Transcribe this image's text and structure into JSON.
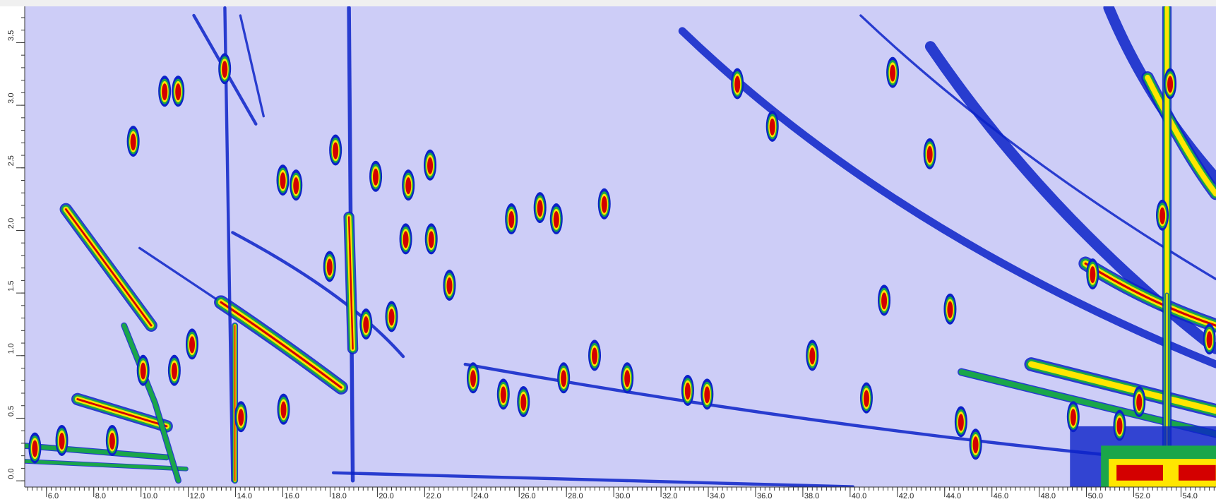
{
  "chart_data": {
    "type": "contour",
    "xlim": [
      5.08,
      55.48
    ],
    "ylim": [
      -0.05,
      3.79
    ],
    "xticks": [
      {
        "value": 6,
        "label": "6.0"
      },
      {
        "value": 8,
        "label": "8.0"
      },
      {
        "value": 10,
        "label": "10.0"
      },
      {
        "value": 12,
        "label": "12.0"
      },
      {
        "value": 14,
        "label": "14.0"
      },
      {
        "value": 16,
        "label": "16.0"
      },
      {
        "value": 18,
        "label": "18.0"
      },
      {
        "value": 20,
        "label": "20.0"
      },
      {
        "value": 22,
        "label": "22.0"
      },
      {
        "value": 24,
        "label": "24.0"
      },
      {
        "value": 26,
        "label": "26.0"
      },
      {
        "value": 28,
        "label": "28.0"
      },
      {
        "value": 30,
        "label": "30.0"
      },
      {
        "value": 32,
        "label": "32.0"
      },
      {
        "value": 34,
        "label": "34.0"
      },
      {
        "value": 36,
        "label": "36.0"
      },
      {
        "value": 38,
        "label": "38.0"
      },
      {
        "value": 40,
        "label": "40.0"
      },
      {
        "value": 42,
        "label": "42.0"
      },
      {
        "value": 44,
        "label": "44.0"
      },
      {
        "value": 46,
        "label": "46.0"
      },
      {
        "value": 48,
        "label": "48.0"
      },
      {
        "value": 50,
        "label": "50.0"
      },
      {
        "value": 52,
        "label": "52.0"
      },
      {
        "value": 54,
        "label": "54.0"
      }
    ],
    "yticks": [
      {
        "value": 0,
        "label": "0.0"
      },
      {
        "value": 0.5,
        "label": "0.5"
      },
      {
        "value": 1,
        "label": "1.0"
      },
      {
        "value": 1.5,
        "label": "1.5"
      },
      {
        "value": 2,
        "label": "2.0"
      },
      {
        "value": 2.5,
        "label": "2.5"
      },
      {
        "value": 3,
        "label": "3.0"
      },
      {
        "value": 3.5,
        "label": "3.5"
      }
    ],
    "background": "#cdcdf7",
    "colors": [
      "#0b22c8",
      "#1aa64a",
      "#ffe600",
      "#d40000"
    ],
    "x": [
      9.67,
      11.0,
      11.57,
      13.54,
      16.0,
      16.56,
      18.23,
      19.93,
      21.31,
      22.23,
      25.67,
      26.88,
      27.57,
      29.6,
      21.2,
      22.28,
      24.05,
      25.33,
      26.18,
      27.88,
      29.19,
      30.57,
      33.13,
      33.95,
      40.69,
      41.44,
      44.23,
      41.8,
      35.23,
      36.71,
      43.37,
      14.23,
      16.03,
      12.16,
      17.98,
      19.52,
      20.6,
      23.05,
      50.26,
      53.21,
      55.2,
      49.44,
      52.23,
      5.51,
      6.65,
      8.78,
      10.09,
      11.41,
      44.69,
      45.31,
      53.54,
      51.4,
      38.4
    ],
    "y": [
      2.7,
      3.1,
      3.1,
      3.28,
      2.39,
      2.35,
      2.63,
      2.42,
      2.35,
      2.51,
      2.08,
      2.17,
      2.08,
      2.2,
      1.92,
      1.92,
      0.81,
      0.68,
      0.62,
      0.81,
      0.99,
      0.81,
      0.71,
      0.68,
      0.65,
      1.43,
      1.36,
      3.25,
      3.16,
      2.82,
      2.6,
      0.5,
      0.56,
      1.08,
      1.7,
      1.24,
      1.3,
      1.55,
      1.64,
      2.11,
      1.12,
      0.5,
      0.62,
      0.25,
      0.31,
      0.31,
      0.87,
      0.87,
      0.46,
      0.28,
      3.16,
      0.43,
      0.99
    ]
  }
}
